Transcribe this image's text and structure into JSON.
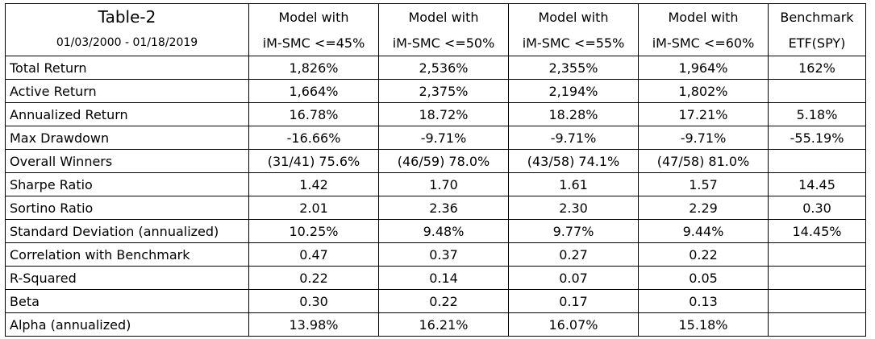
{
  "table": {
    "title": "Table-2",
    "date_range": "01/03/2000 - 01/18/2019",
    "columns": [
      {
        "line1": "Model with",
        "line2": "iM-SMC <=45%"
      },
      {
        "line1": "Model with",
        "line2": "iM-SMC <=50%"
      },
      {
        "line1": "Model with",
        "line2": "iM-SMC <=55%"
      },
      {
        "line1": "Model with",
        "line2": "iM-SMC <=60%"
      },
      {
        "line1": "Benchmark",
        "line2": "ETF(SPY)"
      }
    ],
    "rows": [
      {
        "label": "Total Return",
        "values": [
          "1,826%",
          "2,536%",
          "2,355%",
          "1,964%",
          "162%"
        ]
      },
      {
        "label": "Active Return",
        "values": [
          "1,664%",
          "2,375%",
          "2,194%",
          "1,802%",
          ""
        ]
      },
      {
        "label": "Annualized Return",
        "values": [
          "16.78%",
          "18.72%",
          "18.28%",
          "17.21%",
          "5.18%"
        ]
      },
      {
        "label": "Max Drawdown",
        "values": [
          "-16.66%",
          "-9.71%",
          "-9.71%",
          "-9.71%",
          "-55.19%"
        ]
      },
      {
        "label": "Overall Winners",
        "values": [
          "(31/41) 75.6%",
          "(46/59) 78.0%",
          "(43/58) 74.1%",
          "(47/58) 81.0%",
          ""
        ]
      },
      {
        "label": "Sharpe Ratio",
        "values": [
          "1.42",
          "1.70",
          "1.61",
          "1.57",
          "14.45"
        ]
      },
      {
        "label": "Sortino Ratio",
        "values": [
          "2.01",
          "2.36",
          "2.30",
          "2.29",
          "0.30"
        ]
      },
      {
        "label": "Standard Deviation (annualized)",
        "values": [
          "10.25%",
          "9.48%",
          "9.77%",
          "9.44%",
          "14.45%"
        ]
      },
      {
        "label": "Correlation with Benchmark",
        "values": [
          "0.47",
          "0.37",
          "0.27",
          "0.22",
          ""
        ]
      },
      {
        "label": "R-Squared",
        "values": [
          "0.22",
          "0.14",
          "0.07",
          "0.05",
          ""
        ]
      },
      {
        "label": "Beta",
        "values": [
          "0.30",
          "0.22",
          "0.17",
          "0.13",
          ""
        ]
      },
      {
        "label": "Alpha (annualized)",
        "values": [
          "13.98%",
          "16.21%",
          "16.07%",
          "15.18%",
          ""
        ]
      }
    ]
  }
}
